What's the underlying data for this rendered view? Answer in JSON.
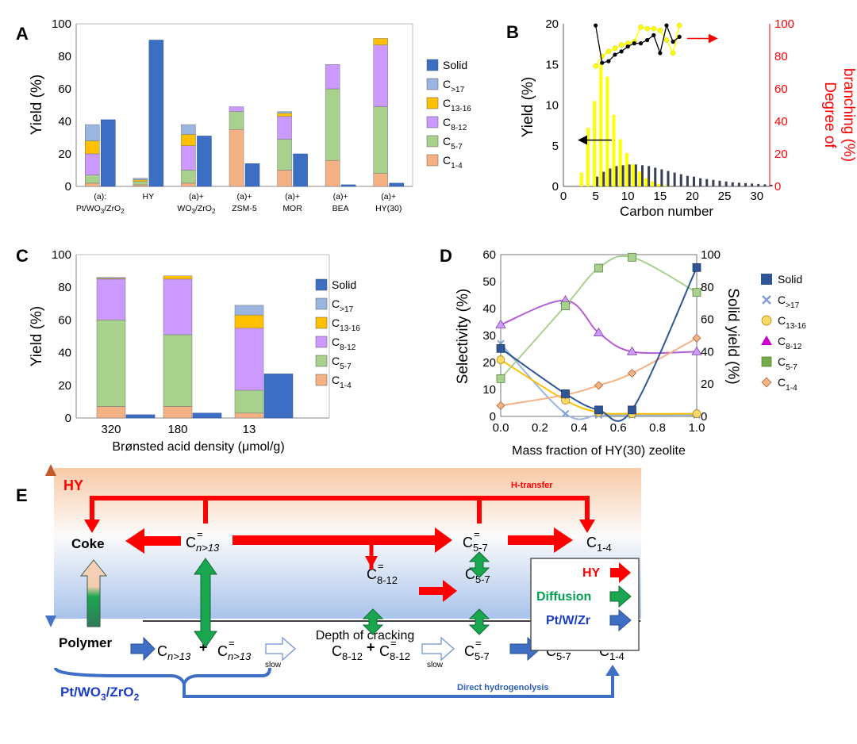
{
  "panel_labels": {
    "a": "A",
    "b": "B",
    "c": "C",
    "d": "D",
    "e": "E"
  },
  "colors": {
    "solid": "#3c6fc3",
    "c17": "#9ab6e0",
    "c1316": "#ffc000",
    "c812": "#cc99ff",
    "c57": "#a9d18e",
    "c14": "#f4b183",
    "yellow": "#ffff00",
    "red": "#ff0000",
    "green": "#00a050",
    "blue_arrow": "#3f6fc4",
    "orange": "#f08c3c"
  },
  "legend_labels": {
    "solid": "Solid",
    "c17": "C>17",
    "c1316": "C13-16",
    "c812": "C8-12",
    "c57": "C5-7",
    "c14": "C1-4"
  },
  "chart_data": [
    {
      "panel": "A",
      "type": "bar",
      "ylabel": "Yield (%)",
      "ylim": [
        0,
        100
      ],
      "yticks": [
        0,
        20,
        40,
        60,
        80,
        100
      ],
      "categories": [
        [
          "(a):",
          "Pt/WO3/ZrO2"
        ],
        [
          "HY"
        ],
        [
          "(a)+",
          "WO3/ZrO2"
        ],
        [
          "(a)+",
          "ZSM-5"
        ],
        [
          "(a)+",
          "MOR"
        ],
        [
          "(a)+",
          "BEA"
        ],
        [
          "(a)+",
          "HY(30)"
        ]
      ],
      "stacked_series": [
        {
          "key": "c14",
          "values": [
            2,
            1,
            2,
            35,
            10,
            16,
            8
          ]
        },
        {
          "key": "c57",
          "values": [
            5,
            2,
            8,
            11,
            19,
            44,
            41
          ]
        },
        {
          "key": "c812",
          "values": [
            13,
            0,
            15,
            3,
            14,
            15,
            38
          ]
        },
        {
          "key": "c1316",
          "values": [
            8,
            1,
            7,
            0,
            2,
            0,
            4
          ]
        },
        {
          "key": "c17",
          "values": [
            10,
            1,
            6,
            0,
            1,
            0,
            0
          ]
        }
      ],
      "solid": [
        41,
        90,
        31,
        14,
        20,
        1,
        2
      ]
    },
    {
      "panel": "B",
      "type": "bar+line",
      "xlabel": "Carbon number",
      "ylabel": "Yield (%)",
      "y2label": "Degree of branching (%)",
      "xlim": [
        0,
        32
      ],
      "ylim": [
        0,
        20
      ],
      "y2lim": [
        0,
        100
      ],
      "xticks": [
        0,
        5,
        10,
        15,
        20,
        25,
        30
      ],
      "yticks": [
        0,
        5,
        10,
        15,
        20
      ],
      "y2ticks": [
        0,
        20,
        40,
        60,
        80,
        100
      ],
      "series": [
        {
          "name": "yellow",
          "x": [
            3,
            4,
            5,
            6,
            7,
            8,
            9,
            10,
            11,
            12,
            13,
            14,
            15,
            16
          ],
          "values": [
            1.7,
            7.2,
            10.5,
            15.2,
            13.5,
            8.8,
            5.8,
            4.1,
            2.7,
            1.8,
            1.0,
            0.6,
            0.3,
            0.1
          ]
        },
        {
          "name": "dark",
          "x": [
            5,
            6,
            7,
            8,
            9,
            10,
            11,
            12,
            13,
            14,
            15,
            16,
            17,
            18,
            19,
            20,
            21,
            22,
            23,
            24,
            25,
            26,
            27,
            28,
            29,
            30,
            31,
            32
          ],
          "values": [
            1.2,
            1.8,
            2.2,
            2.5,
            2.6,
            2.7,
            2.7,
            2.6,
            2.5,
            2.3,
            2.1,
            1.9,
            1.7,
            1.5,
            1.3,
            1.2,
            1.0,
            0.9,
            0.8,
            0.7,
            0.6,
            0.5,
            0.45,
            0.4,
            0.35,
            0.3,
            0.25,
            0.2
          ]
        }
      ],
      "branching_yellow": {
        "x": [
          5,
          6,
          7,
          8,
          9,
          10,
          11,
          12,
          13,
          14,
          15,
          16,
          17,
          18
        ],
        "values": [
          74,
          80,
          83,
          85,
          87,
          88,
          89,
          98,
          97,
          97,
          96,
          90,
          82,
          99
        ]
      },
      "branching_black": {
        "x": [
          5,
          6,
          7,
          8,
          9,
          10,
          11,
          12,
          13,
          14,
          15,
          16,
          17,
          18
        ],
        "values": [
          99,
          76,
          77,
          81,
          83,
          86,
          88,
          88,
          90,
          93,
          82,
          99,
          89,
          92
        ]
      }
    },
    {
      "panel": "C",
      "type": "bar",
      "xlabel": "Brønsted acid density (μmol/g)",
      "ylabel": "Yield (%)",
      "ylim": [
        0,
        100
      ],
      "yticks": [
        0,
        20,
        40,
        60,
        80,
        100
      ],
      "categories": [
        "320",
        "180",
        "13"
      ],
      "stacked_series": [
        {
          "key": "c14",
          "values": [
            7,
            7,
            3
          ]
        },
        {
          "key": "c57",
          "values": [
            53,
            44,
            14
          ]
        },
        {
          "key": "c812",
          "values": [
            25,
            34,
            38
          ]
        },
        {
          "key": "c1316",
          "values": [
            0.5,
            2,
            8
          ]
        },
        {
          "key": "c17",
          "values": [
            0.5,
            0,
            6
          ]
        }
      ],
      "solid": [
        2,
        3,
        27
      ]
    },
    {
      "panel": "D",
      "type": "scatter+line",
      "xlabel": "Mass fraction of HY(30) zeolite",
      "ylabel": "Selectivity (%)",
      "y2label": "Solid yield (%)",
      "xlim": [
        0,
        1
      ],
      "ylim": [
        0,
        60
      ],
      "y2lim": [
        0,
        100
      ],
      "xticks": [
        "0.0",
        "0.2",
        "0.4",
        "0.6",
        "0.8",
        "1.0"
      ],
      "yticks": [
        0,
        10,
        20,
        30,
        40,
        50,
        60
      ],
      "y2ticks": [
        0,
        20,
        40,
        60,
        80,
        100
      ],
      "x": [
        0,
        0.33,
        0.5,
        0.67,
        1.0
      ],
      "series": [
        {
          "key": "c17",
          "values": [
            27,
            1,
            0.5,
            0.5,
            0.5
          ]
        },
        {
          "key": "c1316",
          "values": [
            21,
            6,
            1.5,
            1,
            1
          ]
        },
        {
          "key": "c812",
          "values": [
            34,
            43,
            31,
            24,
            24
          ]
        },
        {
          "key": "c57",
          "values": [
            14,
            41,
            55,
            59,
            46
          ]
        },
        {
          "key": "c14",
          "values": [
            4,
            8,
            11.5,
            16,
            29
          ]
        }
      ],
      "solid": [
        42,
        14,
        4,
        4,
        92
      ]
    }
  ],
  "scheme": {
    "hy": "HY",
    "h_transfer": "H-transfer",
    "coke": "Coke",
    "polymer": "Polymer",
    "cat": "Pt/WO3/ZrO2",
    "legend_hy": "HY",
    "legend_diffusion": "Diffusion",
    "legend_ptwzr": "Pt/W/Zr",
    "slow1": "slow",
    "slow2": "slow",
    "direct": "Direct hydrogenolysis",
    "depth": "Depth of cracking",
    "plus": "+",
    "eq": "=",
    "cn13": "n>13",
    "c812": "8-12",
    "c57": "5-7",
    "c14": "1-4"
  }
}
